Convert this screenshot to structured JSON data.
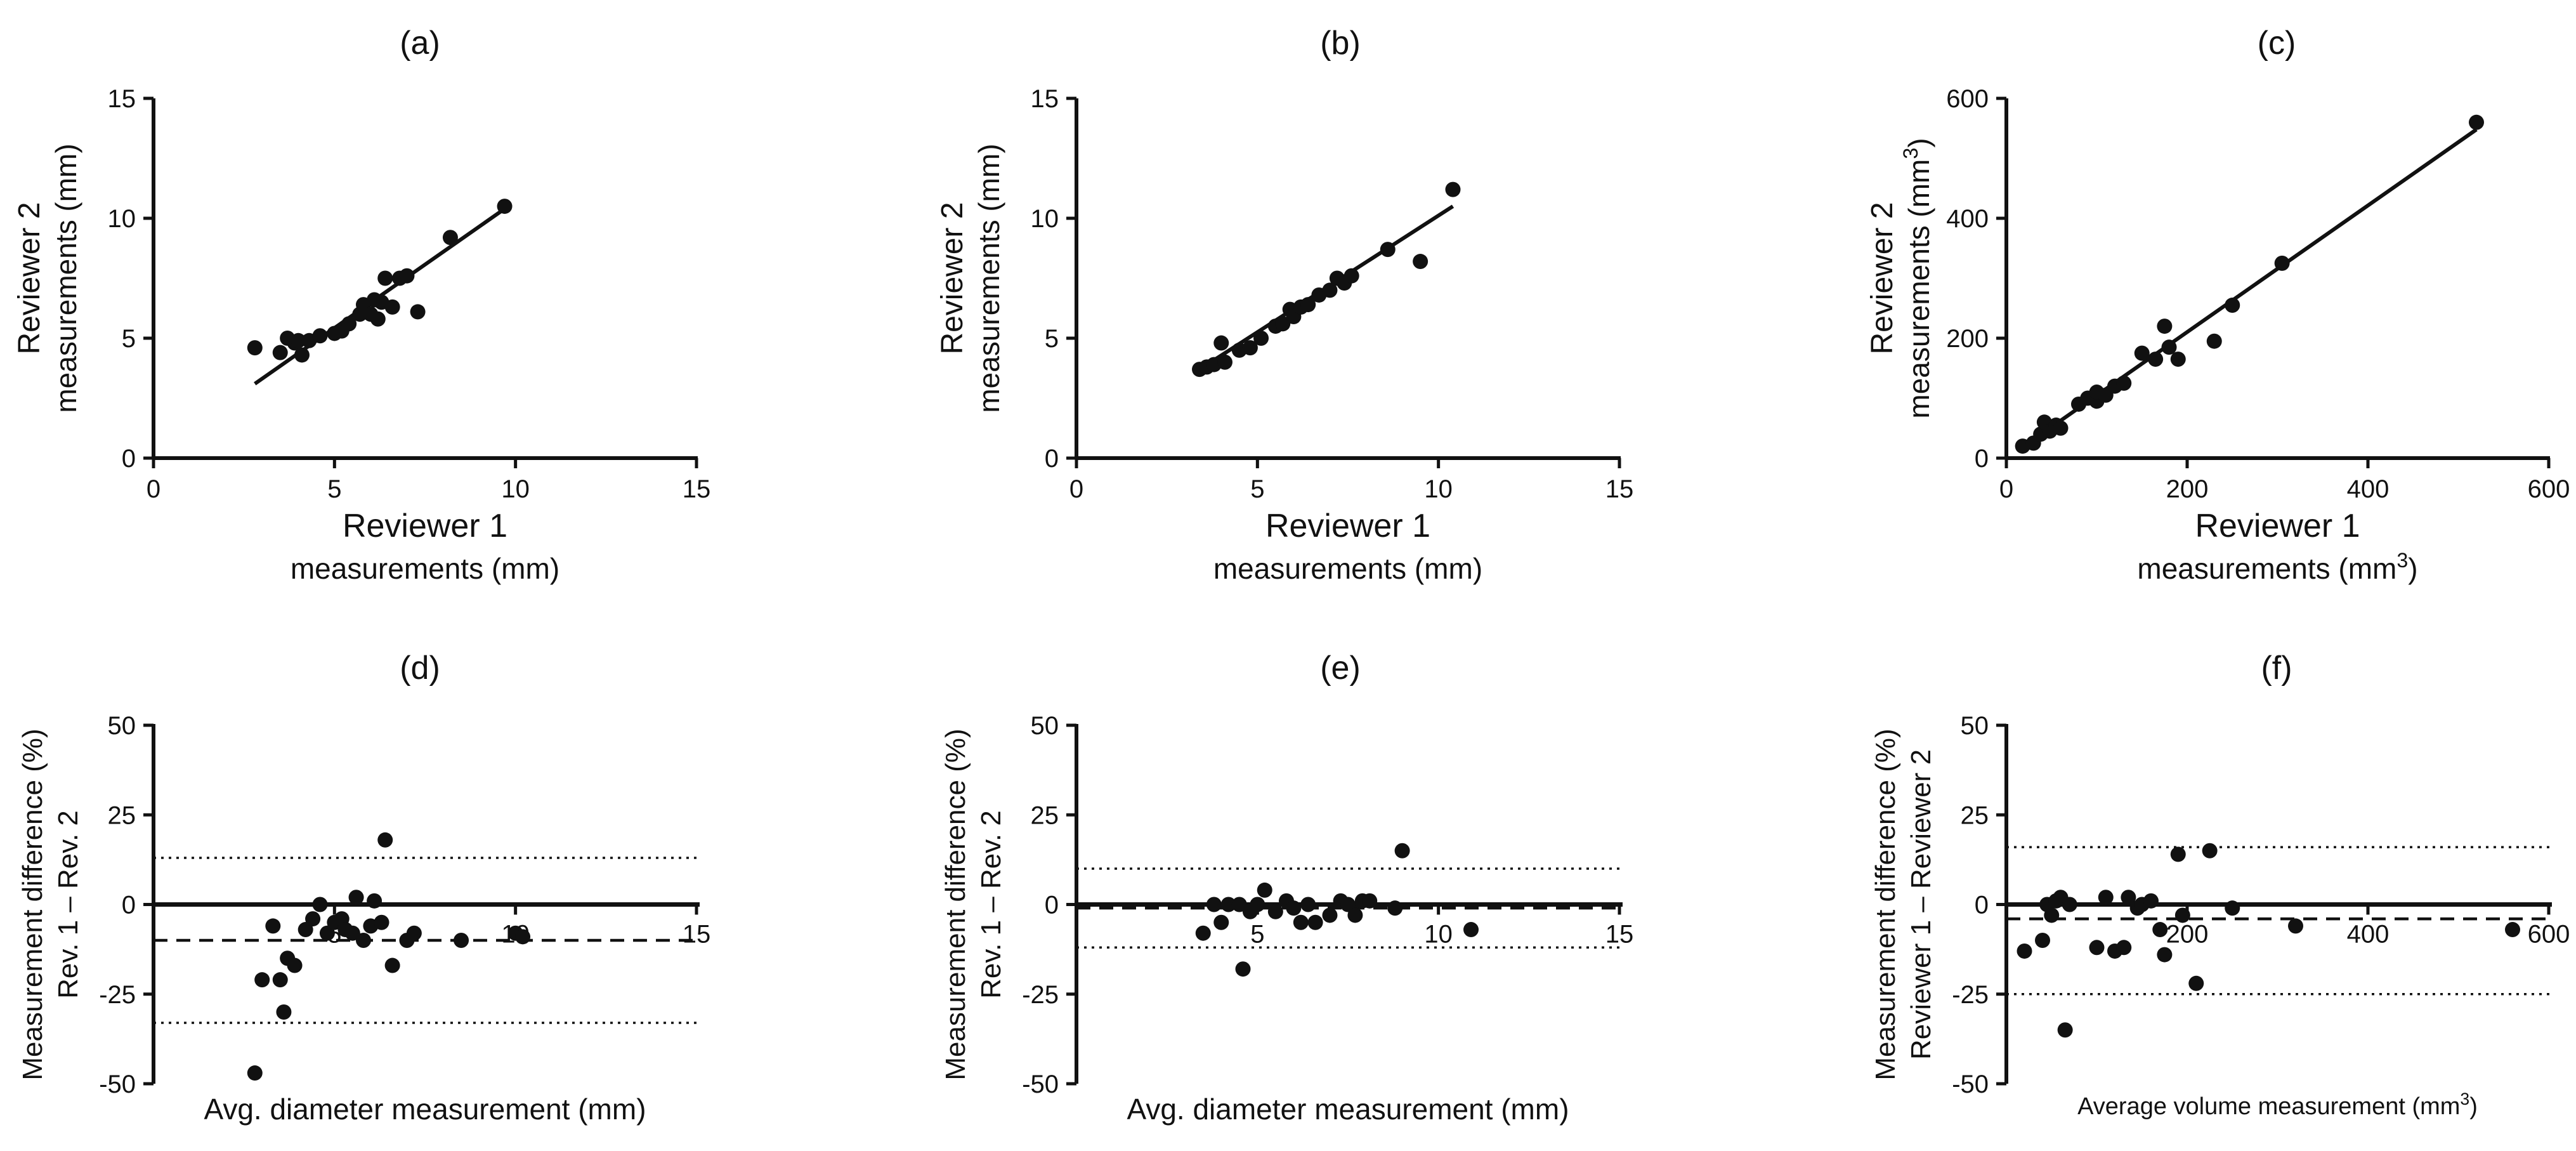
{
  "chart_data": [
    {
      "id": "a",
      "type": "scatter",
      "title": "(a)",
      "xlabel": "Reviewer 1",
      "xlabel2": "measurements (mm)",
      "ylabel": "Reviewer 2",
      "ylabel2": "measurements (mm)",
      "xlim": [
        0,
        15
      ],
      "ylim": [
        0,
        15
      ],
      "xticks": [
        0,
        5,
        10,
        15
      ],
      "yticks": [
        0,
        5,
        10,
        15
      ],
      "fit_line": {
        "x": [
          2.8,
          9.8
        ],
        "y": [
          3.1,
          10.5
        ]
      },
      "points": [
        [
          2.8,
          4.6
        ],
        [
          3.5,
          4.4
        ],
        [
          3.7,
          5.0
        ],
        [
          3.9,
          4.8
        ],
        [
          4.0,
          4.9
        ],
        [
          4.1,
          4.3
        ],
        [
          4.3,
          4.9
        ],
        [
          4.6,
          5.1
        ],
        [
          5.0,
          5.2
        ],
        [
          5.2,
          5.3
        ],
        [
          5.4,
          5.6
        ],
        [
          5.7,
          6.0
        ],
        [
          5.8,
          6.4
        ],
        [
          6.0,
          6.0
        ],
        [
          6.1,
          6.6
        ],
        [
          6.2,
          5.8
        ],
        [
          6.3,
          6.5
        ],
        [
          6.4,
          7.5
        ],
        [
          6.6,
          6.3
        ],
        [
          6.8,
          7.5
        ],
        [
          7.0,
          7.6
        ],
        [
          7.3,
          6.1
        ],
        [
          8.2,
          9.2
        ],
        [
          9.7,
          10.5
        ]
      ]
    },
    {
      "id": "b",
      "type": "scatter",
      "title": "(b)",
      "xlabel": "Reviewer 1",
      "xlabel2": "measurements (mm)",
      "ylabel": "Reviewer 2",
      "ylabel2": "measurements (mm)",
      "xlim": [
        0,
        15
      ],
      "ylim": [
        0,
        15
      ],
      "xticks": [
        0,
        5,
        10,
        15
      ],
      "yticks": [
        0,
        5,
        10,
        15
      ],
      "fit_line": {
        "x": [
          3.3,
          10.4
        ],
        "y": [
          3.6,
          10.5
        ]
      },
      "points": [
        [
          3.4,
          3.7
        ],
        [
          3.6,
          3.8
        ],
        [
          3.8,
          3.9
        ],
        [
          4.0,
          4.8
        ],
        [
          4.1,
          4.0
        ],
        [
          4.5,
          4.5
        ],
        [
          4.8,
          4.6
        ],
        [
          5.1,
          5.0
        ],
        [
          5.5,
          5.5
        ],
        [
          5.7,
          5.6
        ],
        [
          5.9,
          6.2
        ],
        [
          6.0,
          5.9
        ],
        [
          6.2,
          6.3
        ],
        [
          6.4,
          6.4
        ],
        [
          6.7,
          6.8
        ],
        [
          7.0,
          7.0
        ],
        [
          7.2,
          7.5
        ],
        [
          7.4,
          7.3
        ],
        [
          7.6,
          7.6
        ],
        [
          8.6,
          8.7
        ],
        [
          9.5,
          8.2
        ],
        [
          10.4,
          11.2
        ]
      ]
    },
    {
      "id": "c",
      "type": "scatter",
      "title": "(c)",
      "xlabel": "Reviewer 1",
      "xlabel2": "measurements (mm",
      "xlabel2_sup": "3",
      "xlabel2_end": ")",
      "ylabel": "Reviewer 2",
      "ylabel2": "measurements (mm",
      "ylabel2_sup": "3",
      "ylabel2_end": ")",
      "xlim": [
        0,
        600
      ],
      "ylim": [
        0,
        600
      ],
      "xticks": [
        0,
        200,
        400,
        600
      ],
      "yticks": [
        0,
        200,
        400,
        600
      ],
      "fit_line": {
        "x": [
          15,
          520
        ],
        "y": [
          15,
          548
        ]
      },
      "points": [
        [
          18,
          20
        ],
        [
          30,
          25
        ],
        [
          38,
          40
        ],
        [
          42,
          60
        ],
        [
          48,
          45
        ],
        [
          55,
          55
        ],
        [
          60,
          50
        ],
        [
          80,
          90
        ],
        [
          90,
          100
        ],
        [
          100,
          95
        ],
        [
          100,
          110
        ],
        [
          110,
          105
        ],
        [
          120,
          120
        ],
        [
          130,
          125
        ],
        [
          150,
          175
        ],
        [
          165,
          165
        ],
        [
          175,
          220
        ],
        [
          180,
          185
        ],
        [
          190,
          165
        ],
        [
          230,
          195
        ],
        [
          250,
          255
        ],
        [
          305,
          325
        ],
        [
          520,
          560
        ]
      ]
    },
    {
      "id": "d",
      "type": "scatter",
      "title": "(d)",
      "xlabel": "Avg. diameter measurement (mm)",
      "ylabel": "Measurement difference (%)",
      "ylabel2": "Rev. 1 – Rev. 2",
      "xlim": [
        0,
        15
      ],
      "ylim": [
        -50,
        50
      ],
      "xticks": [
        5,
        10,
        15
      ],
      "yticks": [
        -50,
        -25,
        0,
        25,
        50
      ],
      "zero_line": 0,
      "mean_line": -10,
      "loa_lines": [
        13,
        -33
      ],
      "points": [
        [
          2.8,
          -47
        ],
        [
          3.0,
          -21
        ],
        [
          3.3,
          -6
        ],
        [
          3.5,
          -21
        ],
        [
          3.6,
          -30
        ],
        [
          3.7,
          -15
        ],
        [
          3.9,
          -17
        ],
        [
          4.2,
          -7
        ],
        [
          4.4,
          -4
        ],
        [
          4.6,
          0
        ],
        [
          4.8,
          -8
        ],
        [
          5.0,
          -5
        ],
        [
          5.2,
          -4
        ],
        [
          5.3,
          -7
        ],
        [
          5.5,
          -8
        ],
        [
          5.6,
          2
        ],
        [
          5.8,
          -10
        ],
        [
          6.0,
          -6
        ],
        [
          6.1,
          1
        ],
        [
          6.3,
          -5
        ],
        [
          6.4,
          18
        ],
        [
          6.6,
          -17
        ],
        [
          7.0,
          -10
        ],
        [
          7.2,
          -8
        ],
        [
          8.5,
          -10
        ],
        [
          10.0,
          -8
        ],
        [
          10.2,
          -9
        ]
      ]
    },
    {
      "id": "e",
      "type": "scatter",
      "title": "(e)",
      "xlabel": "Avg. diameter measurement (mm)",
      "ylabel": "Measurement difference (%)",
      "ylabel2": "Rev. 1 – Rev. 2",
      "xlim": [
        0,
        15
      ],
      "ylim": [
        -50,
        50
      ],
      "xticks": [
        5,
        10,
        15
      ],
      "yticks": [
        -50,
        -25,
        0,
        25,
        50
      ],
      "zero_line": 0,
      "mean_line": -1,
      "loa_lines": [
        10,
        -12
      ],
      "points": [
        [
          3.5,
          -8
        ],
        [
          3.8,
          0
        ],
        [
          4.0,
          -5
        ],
        [
          4.2,
          0
        ],
        [
          4.5,
          0
        ],
        [
          4.6,
          -18
        ],
        [
          4.8,
          -2
        ],
        [
          5.0,
          0
        ],
        [
          5.2,
          4
        ],
        [
          5.5,
          -2
        ],
        [
          5.8,
          1
        ],
        [
          6.0,
          -1
        ],
        [
          6.2,
          -5
        ],
        [
          6.4,
          0
        ],
        [
          6.6,
          -5
        ],
        [
          7.0,
          -3
        ],
        [
          7.3,
          1
        ],
        [
          7.5,
          0
        ],
        [
          7.7,
          -3
        ],
        [
          7.9,
          1
        ],
        [
          8.1,
          1
        ],
        [
          8.8,
          -1
        ],
        [
          9.0,
          15
        ],
        [
          10.9,
          -7
        ]
      ]
    },
    {
      "id": "f",
      "type": "scatter",
      "title": "(f)",
      "xlabel": "Average volume measurement (mm",
      "xlabel_sup": "3",
      "xlabel_end": ")",
      "ylabel": "Measurement difference (%)",
      "ylabel2": "Reviewer 1 – Reviewer 2",
      "xlim": [
        0,
        600
      ],
      "ylim": [
        -50,
        50
      ],
      "xticks": [
        200,
        400,
        600
      ],
      "yticks": [
        -50,
        -25,
        0,
        25,
        50
      ],
      "zero_line": 0,
      "mean_line": -4,
      "loa_lines": [
        16,
        -25
      ],
      "points": [
        [
          20,
          -13
        ],
        [
          40,
          -10
        ],
        [
          45,
          0
        ],
        [
          50,
          -3
        ],
        [
          55,
          1
        ],
        [
          60,
          2
        ],
        [
          65,
          -35
        ],
        [
          70,
          0
        ],
        [
          100,
          -12
        ],
        [
          110,
          2
        ],
        [
          120,
          -13
        ],
        [
          130,
          -12
        ],
        [
          135,
          2
        ],
        [
          145,
          -1
        ],
        [
          150,
          0
        ],
        [
          160,
          1
        ],
        [
          170,
          -7
        ],
        [
          175,
          -14
        ],
        [
          190,
          14
        ],
        [
          195,
          -3
        ],
        [
          210,
          -22
        ],
        [
          225,
          15
        ],
        [
          250,
          -1
        ],
        [
          320,
          -6
        ],
        [
          560,
          -7
        ]
      ]
    }
  ]
}
